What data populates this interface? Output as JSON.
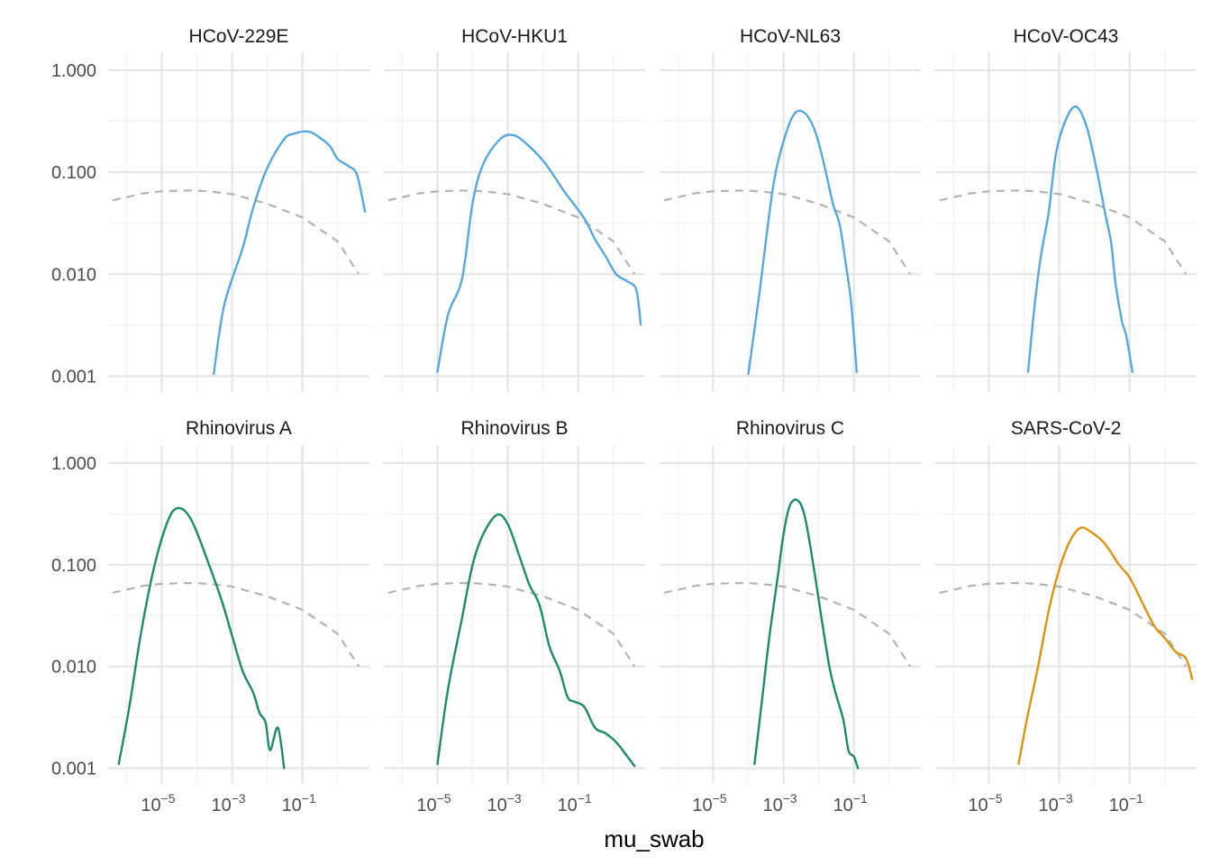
{
  "chart_data": {
    "type": "line",
    "layout": "facet grid, 2 rows x 4 columns, shared axes",
    "xlabel": "mu_swab",
    "ylabel": "",
    "x_scale": "log10",
    "y_scale": "log10",
    "xlim": [
      3e-07,
      8
    ],
    "ylim": [
      0.0007,
      1.5
    ],
    "x_ticks": [
      "10^-5",
      "10^-3",
      "10^-1"
    ],
    "x_tick_values": [
      1e-05,
      0.001,
      0.1
    ],
    "y_ticks": [
      "0.001",
      "0.010",
      "0.100",
      "1.000"
    ],
    "y_tick_values": [
      0.001,
      0.01,
      0.1,
      1.0
    ],
    "grid": true,
    "legend": "none",
    "colors": {
      "blue": "#56a8df",
      "green": "#1b8c6a",
      "orange": "#dc9410",
      "prior": "#b3b3b3"
    },
    "prior": {
      "style": "dashed",
      "points": [
        [
          4e-07,
          0.053
        ],
        [
          3e-06,
          0.062
        ],
        [
          1e-05,
          0.065
        ],
        [
          4e-05,
          0.066
        ],
        [
          0.0001,
          0.066
        ],
        [
          0.0003,
          0.064
        ],
        [
          0.001,
          0.061
        ],
        [
          0.01,
          0.049
        ],
        [
          0.1,
          0.036
        ],
        [
          1,
          0.021
        ],
        [
          4,
          0.01
        ]
      ]
    },
    "panels": [
      {
        "title": "HCoV-229E",
        "color": "blue",
        "points": [
          [
            0.0003,
            0.00105
          ],
          [
            0.0006,
            0.005
          ],
          [
            0.002,
            0.018
          ],
          [
            0.004,
            0.045
          ],
          [
            0.01,
            0.11
          ],
          [
            0.03,
            0.21
          ],
          [
            0.06,
            0.24
          ],
          [
            0.15,
            0.25
          ],
          [
            0.3,
            0.22
          ],
          [
            0.6,
            0.18
          ],
          [
            1,
            0.135
          ],
          [
            2,
            0.115
          ],
          [
            3.5,
            0.095
          ],
          [
            6,
            0.041
          ]
        ]
      },
      {
        "title": "HCoV-HKU1",
        "color": "blue",
        "points": [
          [
            1e-05,
            0.0011
          ],
          [
            2e-05,
            0.004
          ],
          [
            5e-05,
            0.009
          ],
          [
            0.0001,
            0.05
          ],
          [
            0.0002,
            0.12
          ],
          [
            0.0006,
            0.21
          ],
          [
            0.0015,
            0.23
          ],
          [
            0.004,
            0.18
          ],
          [
            0.012,
            0.12
          ],
          [
            0.04,
            0.065
          ],
          [
            0.15,
            0.035
          ],
          [
            0.3,
            0.022
          ],
          [
            0.6,
            0.015
          ],
          [
            1.2,
            0.01
          ],
          [
            2.5,
            0.0085
          ],
          [
            4.5,
            0.007
          ],
          [
            6,
            0.0032
          ]
        ]
      },
      {
        "title": "HCoV-NL63",
        "color": "blue",
        "points": [
          [
            0.0001,
            0.00105
          ],
          [
            0.0002,
            0.006
          ],
          [
            0.0005,
            0.07
          ],
          [
            0.001,
            0.2
          ],
          [
            0.002,
            0.37
          ],
          [
            0.004,
            0.38
          ],
          [
            0.008,
            0.25
          ],
          [
            0.015,
            0.11
          ],
          [
            0.025,
            0.05
          ],
          [
            0.04,
            0.03
          ],
          [
            0.06,
            0.012
          ],
          [
            0.08,
            0.006
          ],
          [
            0.1,
            0.0025
          ],
          [
            0.12,
            0.0011
          ]
        ]
      },
      {
        "title": "HCoV-OC43",
        "color": "blue",
        "points": [
          [
            0.00013,
            0.0011
          ],
          [
            0.0002,
            0.005
          ],
          [
            0.0003,
            0.015
          ],
          [
            0.0005,
            0.04
          ],
          [
            0.0008,
            0.15
          ],
          [
            0.0015,
            0.32
          ],
          [
            0.003,
            0.44
          ],
          [
            0.006,
            0.28
          ],
          [
            0.012,
            0.1
          ],
          [
            0.02,
            0.04
          ],
          [
            0.03,
            0.02
          ],
          [
            0.04,
            0.008
          ],
          [
            0.06,
            0.0035
          ],
          [
            0.08,
            0.0025
          ],
          [
            0.12,
            0.0011
          ]
        ]
      },
      {
        "title": "Rhinovirus A",
        "color": "green",
        "points": [
          [
            6e-07,
            0.0011
          ],
          [
            1.2e-06,
            0.004
          ],
          [
            2.5e-06,
            0.02
          ],
          [
            5e-06,
            0.07
          ],
          [
            1e-05,
            0.18
          ],
          [
            2e-05,
            0.33
          ],
          [
            4e-05,
            0.35
          ],
          [
            8e-05,
            0.25
          ],
          [
            0.0002,
            0.11
          ],
          [
            0.0005,
            0.045
          ],
          [
            0.001,
            0.02
          ],
          [
            0.002,
            0.009
          ],
          [
            0.004,
            0.0055
          ],
          [
            0.006,
            0.0035
          ],
          [
            0.009,
            0.0028
          ],
          [
            0.012,
            0.0015
          ],
          [
            0.02,
            0.0025
          ],
          [
            0.03,
            0.001
          ]
        ]
      },
      {
        "title": "Rhinovirus B",
        "color": "green",
        "points": [
          [
            1e-05,
            0.0011
          ],
          [
            2e-05,
            0.006
          ],
          [
            5e-05,
            0.03
          ],
          [
            0.0001,
            0.1
          ],
          [
            0.0002,
            0.2
          ],
          [
            0.0005,
            0.31
          ],
          [
            0.001,
            0.25
          ],
          [
            0.002,
            0.13
          ],
          [
            0.004,
            0.065
          ],
          [
            0.008,
            0.04
          ],
          [
            0.015,
            0.016
          ],
          [
            0.03,
            0.009
          ],
          [
            0.05,
            0.005
          ],
          [
            0.08,
            0.0045
          ],
          [
            0.15,
            0.004
          ],
          [
            0.3,
            0.0025
          ],
          [
            0.6,
            0.0022
          ],
          [
            1.2,
            0.0018
          ],
          [
            2.5,
            0.0013
          ],
          [
            4,
            0.00105
          ]
        ]
      },
      {
        "title": "Rhinovirus C",
        "color": "green",
        "points": [
          [
            0.00015,
            0.0011
          ],
          [
            0.00025,
            0.005
          ],
          [
            0.0004,
            0.02
          ],
          [
            0.0007,
            0.08
          ],
          [
            0.001,
            0.2
          ],
          [
            0.0015,
            0.38
          ],
          [
            0.0025,
            0.43
          ],
          [
            0.004,
            0.3
          ],
          [
            0.007,
            0.1
          ],
          [
            0.012,
            0.03
          ],
          [
            0.02,
            0.01
          ],
          [
            0.03,
            0.0055
          ],
          [
            0.05,
            0.003
          ],
          [
            0.07,
            0.0015
          ],
          [
            0.1,
            0.0013
          ],
          [
            0.13,
            0.001
          ]
        ]
      },
      {
        "title": "SARS-CoV-2",
        "color": "orange",
        "points": [
          [
            7e-05,
            0.0011
          ],
          [
            0.00012,
            0.003
          ],
          [
            0.00025,
            0.01
          ],
          [
            0.0005,
            0.035
          ],
          [
            0.001,
            0.09
          ],
          [
            0.002,
            0.17
          ],
          [
            0.004,
            0.23
          ],
          [
            0.008,
            0.21
          ],
          [
            0.02,
            0.16
          ],
          [
            0.05,
            0.1
          ],
          [
            0.1,
            0.075
          ],
          [
            0.25,
            0.04
          ],
          [
            0.5,
            0.025
          ],
          [
            1,
            0.019
          ],
          [
            2,
            0.014
          ],
          [
            4,
            0.012
          ],
          [
            6,
            0.0075
          ]
        ]
      }
    ]
  }
}
